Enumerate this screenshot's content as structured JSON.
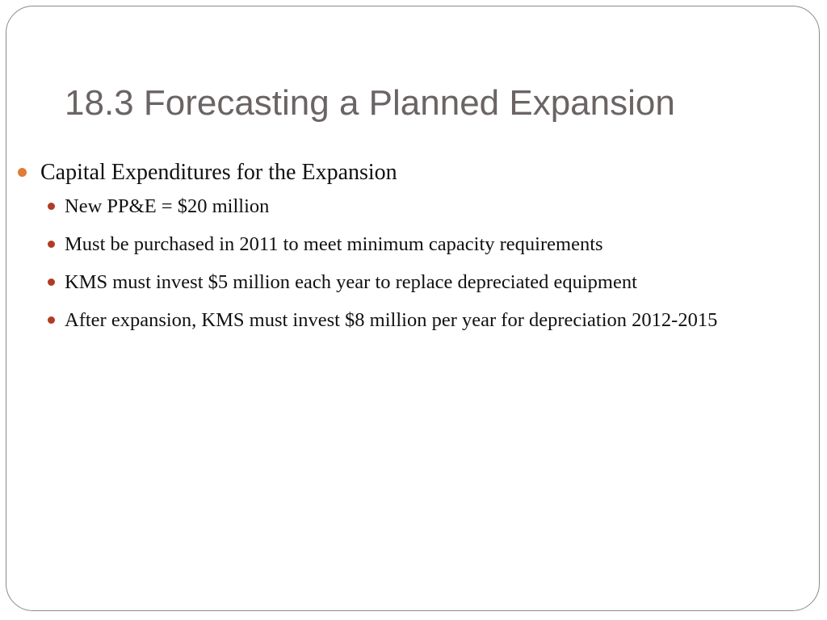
{
  "slide": {
    "title": "18.3 Forecasting a Planned Expansion",
    "bullets": [
      {
        "text": "Capital Expenditures for the Expansion",
        "sub": [
          "New PP&E = $20 million",
          "Must be purchased in 2011 to meet minimum capacity requirements",
          "KMS must invest $5 million each year to replace depreciated equipment",
          "After expansion, KMS must invest $8 million per year for depreciation 2012-2015"
        ]
      }
    ]
  },
  "colors": {
    "title": "#6b6464",
    "bullet_level1": "#e07b39",
    "bullet_level2": "#b23b24",
    "border": "#8a8a8a"
  }
}
